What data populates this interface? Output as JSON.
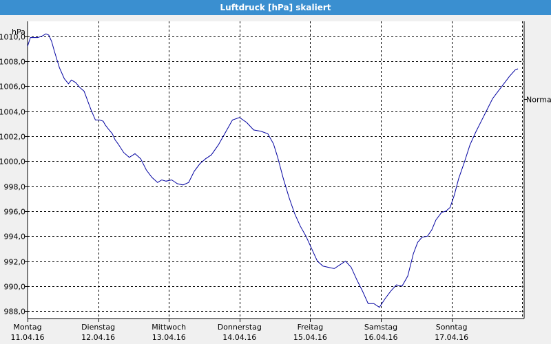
{
  "window": {
    "title": "Luftdruck [hPa] skaliert"
  },
  "chart_data": {
    "type": "line",
    "title": "Luftdruck [hPa] skaliert",
    "ylabel": "hPa",
    "reference_label": "Normal",
    "reference_value": 1005.0,
    "ylim": [
      987.4,
      1011.2
    ],
    "yticks": [
      1010.0,
      1008.0,
      1006.0,
      1004.0,
      1002.0,
      1000.0,
      998.0,
      996.0,
      994.0,
      992.0,
      990.0,
      988.0
    ],
    "ytick_labels": [
      "1010,0",
      "1008,0",
      "1006,0",
      "1004,0",
      "1002,0",
      "1000,0",
      "998,0",
      "996,0",
      "994,0",
      "992,0",
      "990,0",
      "988,0"
    ],
    "xlim": [
      0,
      7
    ],
    "x_unit": "days since Montag 11.04.16 00:00",
    "days": [
      {
        "name": "Montag",
        "date": "11.04.16"
      },
      {
        "name": "Dienstag",
        "date": "12.04.16"
      },
      {
        "name": "Mittwoch",
        "date": "13.04.16"
      },
      {
        "name": "Donnerstag",
        "date": "14.04.16"
      },
      {
        "name": "Freitag",
        "date": "15.04.16"
      },
      {
        "name": "Samstag",
        "date": "16.04.16"
      },
      {
        "name": "Sonntag",
        "date": "17.04.16"
      }
    ],
    "grid": true,
    "line_color": "#0000a0",
    "series": [
      {
        "x": [
          0.0,
          0.04,
          0.08,
          0.14,
          0.2,
          0.26,
          0.3,
          0.34,
          0.38,
          0.45,
          0.52,
          0.58,
          0.62,
          0.68,
          0.74,
          0.8,
          0.86,
          0.9,
          0.96,
          1.02,
          1.07,
          1.1,
          1.14,
          1.2,
          1.24,
          1.28,
          1.36,
          1.44,
          1.52,
          1.6,
          1.68,
          1.76,
          1.84,
          1.9,
          1.96,
          2.04,
          2.12,
          2.2,
          2.28,
          2.36,
          2.44,
          2.52,
          2.6,
          2.7,
          2.8,
          2.9,
          3.0,
          3.1,
          3.2,
          3.3,
          3.4,
          3.48,
          3.54,
          3.62,
          3.7,
          3.78,
          3.86,
          3.94,
          4.02,
          4.1,
          4.18,
          4.26,
          4.34,
          4.42,
          4.5,
          4.58,
          4.66,
          4.74,
          4.82,
          4.9,
          4.98,
          5.06,
          5.14,
          5.22,
          5.3,
          5.38,
          5.46,
          5.52,
          5.58,
          5.66,
          5.72,
          5.78,
          5.86,
          5.92,
          5.98,
          6.04,
          6.1,
          6.18,
          6.26,
          6.34,
          6.42,
          6.5,
          6.58,
          6.66,
          6.74,
          6.82,
          6.9,
          6.94
        ],
        "y": [
          1009.2,
          1009.9,
          1009.9,
          1009.9,
          1010.0,
          1010.2,
          1010.1,
          1009.6,
          1008.8,
          1007.5,
          1006.6,
          1006.2,
          1006.5,
          1006.3,
          1005.9,
          1005.6,
          1004.7,
          1004.1,
          1003.3,
          1003.3,
          1003.2,
          1002.9,
          1002.6,
          1002.2,
          1001.7,
          1001.4,
          1000.7,
          1000.3,
          1000.6,
          1000.2,
          999.3,
          998.7,
          998.3,
          998.5,
          998.4,
          998.5,
          998.2,
          998.1,
          998.3,
          999.2,
          999.8,
          1000.2,
          1000.5,
          1001.3,
          1002.3,
          1003.3,
          1003.5,
          1003.1,
          1002.5,
          1002.4,
          1002.2,
          1001.4,
          1000.3,
          998.6,
          997.1,
          995.8,
          994.8,
          994.0,
          993.0,
          992.0,
          991.6,
          991.5,
          991.4,
          991.7,
          992.0,
          991.5,
          990.5,
          989.6,
          988.6,
          988.6,
          988.3,
          989.0,
          989.6,
          990.1,
          990.0,
          990.8,
          992.6,
          993.5,
          993.9,
          994.0,
          994.5,
          995.3,
          995.9,
          996.0,
          996.3,
          997.3,
          998.6,
          999.9,
          1001.3,
          1002.3,
          1003.2,
          1004.1,
          1005.0,
          1005.6,
          1006.2,
          1006.8,
          1007.3,
          1007.4
        ]
      }
    ]
  }
}
